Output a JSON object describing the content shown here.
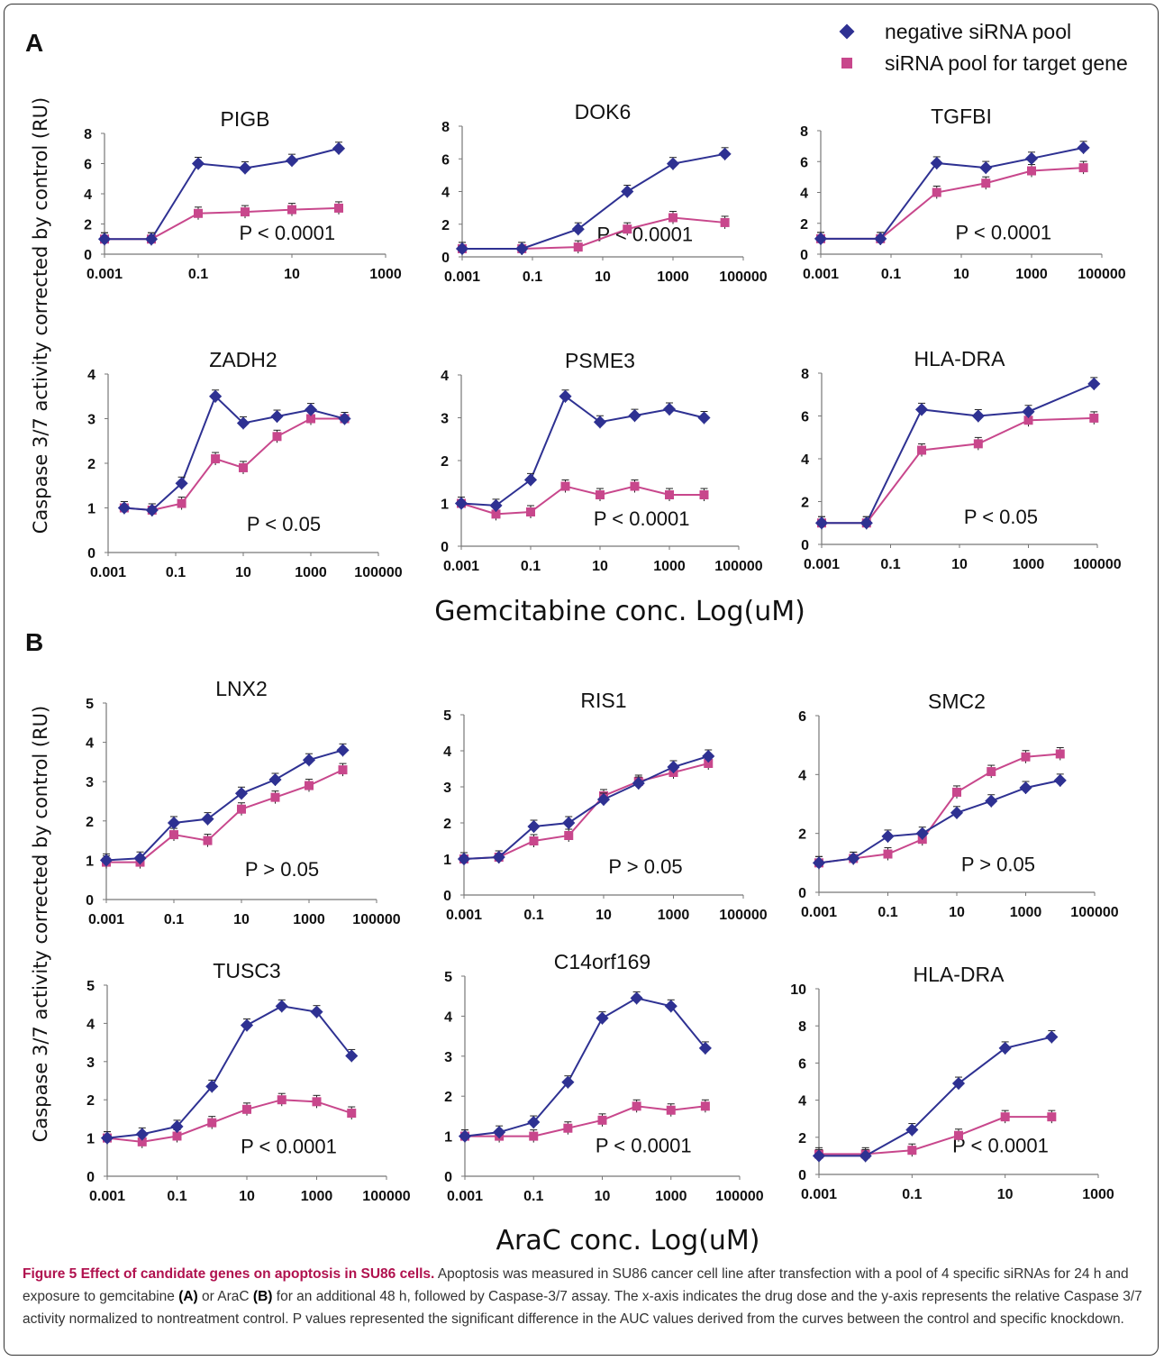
{
  "legend": {
    "items": [
      {
        "label": "negative siRNA pool",
        "color": "#2e3192",
        "marker": "diamond"
      },
      {
        "label": "siRNA pool for target gene",
        "color": "#c8478c",
        "marker": "square"
      }
    ]
  },
  "panels": {
    "A": {
      "letter": "A",
      "xlabel": "Gemcitabine conc. Log(uM)"
    },
    "B": {
      "letter": "B",
      "xlabel": "AraC conc. Log(uM)"
    }
  },
  "ylabel": "Caspase 3/7 activity corrected by control (RU)",
  "caption": {
    "title": "Figure 5 Effect of candidate genes on apoptosis in SU86 cells.",
    "t1": "Apoptosis was measured in SU86 cancer cell line after transfection with a pool of 4 specific siRNAs for 24 h and exposure to gemcitabine",
    "bA": "(A)",
    "t2": "or AraC",
    "bB": "(B)",
    "t3": "for an additional 48 h, followed by Caspase-3/7 assay. The x-axis indicates the drug dose and the y-axis represents the relative Caspase 3/7 activity normalized to nontreatment control. P values represented the significant difference in the AUC values derived from the curves between the control and specific knockdown."
  },
  "colors": {
    "negative": "#2e3192",
    "target": "#c8478c",
    "errorbar": "#222222"
  },
  "chart_data": [
    {
      "type": "line",
      "panel": "A",
      "title": "PIGB",
      "annotation": "P < 0.0001",
      "x_scale": "log",
      "xticks": [
        "0.001",
        "0.1",
        "10",
        "1000"
      ],
      "yticks": [
        "0",
        "2",
        "4",
        "6",
        "8"
      ],
      "ylim": [
        0,
        8
      ],
      "x": [
        0.001,
        0.01,
        0.1,
        1,
        10,
        100
      ],
      "series": [
        {
          "name": "negative siRNA pool",
          "values": [
            1.0,
            1.0,
            6.0,
            5.7,
            6.2,
            7.0
          ]
        },
        {
          "name": "siRNA pool for target gene",
          "values": [
            1.0,
            1.0,
            2.7,
            2.8,
            2.95,
            3.05
          ]
        }
      ]
    },
    {
      "type": "line",
      "panel": "A",
      "title": "DOK6",
      "annotation": "P < 0.0001",
      "x_scale": "log",
      "xticks": [
        "0.001",
        "0.1",
        "10",
        "1000",
        "100000"
      ],
      "yticks": [
        "0",
        "2",
        "4",
        "6",
        "8"
      ],
      "ylim": [
        0,
        8
      ],
      "x": [
        0.001,
        0.05,
        2,
        50,
        1000,
        30000
      ],
      "series": [
        {
          "name": "negative siRNA pool",
          "values": [
            0.5,
            0.5,
            1.7,
            4.0,
            5.7,
            6.3
          ]
        },
        {
          "name": "siRNA pool for target gene",
          "values": [
            0.5,
            0.5,
            0.6,
            1.7,
            2.4,
            2.1
          ]
        }
      ]
    },
    {
      "type": "line",
      "panel": "A",
      "title": "TGFBI",
      "annotation": "P < 0.0001",
      "x_scale": "log",
      "xticks": [
        "0.001",
        "0.1",
        "10",
        "1000",
        "100000"
      ],
      "yticks": [
        "0",
        "2",
        "4",
        "6",
        "8"
      ],
      "ylim": [
        0,
        8
      ],
      "x": [
        0.001,
        0.05,
        2,
        50,
        1000,
        30000
      ],
      "series": [
        {
          "name": "negative siRNA pool",
          "values": [
            1.0,
            1.0,
            5.9,
            5.6,
            6.2,
            6.9
          ]
        },
        {
          "name": "siRNA pool for target gene",
          "values": [
            1.0,
            1.0,
            4.0,
            4.6,
            5.4,
            5.6
          ]
        }
      ]
    },
    {
      "type": "line",
      "panel": "A",
      "title": "ZADH2",
      "annotation": "P < 0.05",
      "x_scale": "log",
      "xticks": [
        "0.001",
        "0.1",
        "10",
        "1000",
        "100000"
      ],
      "yticks": [
        "0",
        "1",
        "2",
        "3",
        "4"
      ],
      "ylim": [
        0,
        4
      ],
      "x": [
        0.003,
        0.02,
        0.15,
        1.5,
        10,
        100,
        1000,
        10000
      ],
      "series": [
        {
          "name": "negative siRNA pool",
          "values": [
            1.0,
            0.95,
            1.55,
            3.5,
            2.9,
            3.05,
            3.2,
            3.0
          ]
        },
        {
          "name": "siRNA pool for target gene",
          "values": [
            1.0,
            0.95,
            1.1,
            2.1,
            1.9,
            2.6,
            3.0,
            3.0
          ]
        }
      ]
    },
    {
      "type": "line",
      "panel": "A",
      "title": "PSME3",
      "annotation": "P < 0.0001",
      "x_scale": "log",
      "xticks": [
        "0.001",
        "0.1",
        "10",
        "1000",
        "100000"
      ],
      "yticks": [
        "0",
        "1",
        "2",
        "3",
        "4"
      ],
      "ylim": [
        0,
        4
      ],
      "x": [
        0.001,
        0.01,
        0.1,
        1,
        10,
        100,
        1000,
        10000
      ],
      "series": [
        {
          "name": "negative siRNA pool",
          "values": [
            1.0,
            0.95,
            1.55,
            3.5,
            2.9,
            3.05,
            3.2,
            3.0
          ]
        },
        {
          "name": "siRNA pool for target gene",
          "values": [
            1.0,
            0.75,
            0.8,
            1.4,
            1.2,
            1.4,
            1.2,
            1.2
          ]
        }
      ]
    },
    {
      "type": "line",
      "panel": "A",
      "title": "HLA-DRA",
      "annotation": "P < 0.05",
      "x_scale": "log",
      "xticks": [
        "0.001",
        "0.1",
        "10",
        "1000",
        "100000"
      ],
      "yticks": [
        "0",
        "2",
        "4",
        "6",
        "8"
      ],
      "ylim": [
        0,
        8
      ],
      "x": [
        0.001,
        0.02,
        0.8,
        35,
        1000,
        80000
      ],
      "series": [
        {
          "name": "negative siRNA pool",
          "values": [
            1.0,
            1.0,
            6.3,
            6.0,
            6.2,
            7.5
          ]
        },
        {
          "name": "siRNA pool for target gene",
          "values": [
            1.0,
            1.0,
            4.4,
            4.7,
            5.8,
            5.9
          ]
        }
      ]
    },
    {
      "type": "line",
      "panel": "B",
      "title": "LNX2",
      "annotation": "P > 0.05",
      "x_scale": "log",
      "xticks": [
        "0.001",
        "0.1",
        "10",
        "1000",
        "100000"
      ],
      "yticks": [
        "0",
        "1",
        "2",
        "3",
        "4",
        "5"
      ],
      "ylim": [
        0,
        5
      ],
      "x": [
        0.001,
        0.01,
        0.1,
        1,
        10,
        100,
        1000,
        10000
      ],
      "series": [
        {
          "name": "negative siRNA pool",
          "values": [
            1.0,
            1.05,
            1.95,
            2.05,
            2.7,
            3.05,
            3.55,
            3.8
          ]
        },
        {
          "name": "siRNA pool for target gene",
          "values": [
            0.95,
            0.95,
            1.65,
            1.5,
            2.3,
            2.6,
            2.9,
            3.3
          ]
        }
      ]
    },
    {
      "type": "line",
      "panel": "B",
      "title": "RIS1",
      "annotation": "P > 0.05",
      "x_scale": "log",
      "xticks": [
        "0.001",
        "0.1",
        "10",
        "1000",
        "100000"
      ],
      "yticks": [
        "0",
        "1",
        "2",
        "3",
        "4",
        "5"
      ],
      "ylim": [
        0,
        5
      ],
      "x": [
        0.001,
        0.01,
        0.1,
        1,
        10,
        100,
        1000,
        10000
      ],
      "series": [
        {
          "name": "negative siRNA pool",
          "values": [
            1.0,
            1.05,
            1.9,
            2.0,
            2.65,
            3.1,
            3.55,
            3.85
          ]
        },
        {
          "name": "siRNA pool for target gene",
          "values": [
            1.0,
            1.05,
            1.5,
            1.65,
            2.75,
            3.15,
            3.4,
            3.65
          ]
        }
      ]
    },
    {
      "type": "line",
      "panel": "B",
      "title": "SMC2",
      "annotation": "P > 0.05",
      "x_scale": "log",
      "xticks": [
        "0.001",
        "0.1",
        "10",
        "1000",
        "100000"
      ],
      "yticks": [
        "0",
        "2",
        "4",
        "6"
      ],
      "ylim": [
        0,
        6
      ],
      "x": [
        0.001,
        0.01,
        0.1,
        1,
        10,
        100,
        1000,
        10000
      ],
      "series": [
        {
          "name": "negative siRNA pool",
          "values": [
            1.0,
            1.15,
            1.9,
            2.0,
            2.7,
            3.1,
            3.55,
            3.8
          ]
        },
        {
          "name": "siRNA pool for target gene",
          "values": [
            1.0,
            1.15,
            1.3,
            1.8,
            3.4,
            4.1,
            4.6,
            4.7
          ]
        }
      ]
    },
    {
      "type": "line",
      "panel": "B",
      "title": "TUSC3",
      "annotation": "P < 0.0001",
      "x_scale": "log",
      "xticks": [
        "0.001",
        "0.1",
        "10",
        "1000",
        "100000"
      ],
      "yticks": [
        "0",
        "1",
        "2",
        "3",
        "4",
        "5"
      ],
      "ylim": [
        0,
        5
      ],
      "x": [
        0.001,
        0.01,
        0.1,
        1,
        10,
        100,
        1000,
        10000
      ],
      "series": [
        {
          "name": "negative siRNA pool",
          "values": [
            1.0,
            1.1,
            1.3,
            2.35,
            3.95,
            4.45,
            4.3,
            3.15
          ]
        },
        {
          "name": "siRNA pool for target gene",
          "values": [
            1.0,
            0.9,
            1.05,
            1.4,
            1.75,
            2.0,
            1.95,
            1.65
          ]
        }
      ]
    },
    {
      "type": "line",
      "panel": "B",
      "title": "C14orf169",
      "annotation": "P < 0.0001",
      "x_scale": "log",
      "xticks": [
        "0.001",
        "0.1",
        "10",
        "1000",
        "100000"
      ],
      "yticks": [
        "0",
        "1",
        "2",
        "3",
        "4",
        "5"
      ],
      "ylim": [
        0,
        5
      ],
      "x": [
        0.001,
        0.01,
        0.1,
        1,
        10,
        100,
        1000,
        10000
      ],
      "series": [
        {
          "name": "negative siRNA pool",
          "values": [
            1.0,
            1.1,
            1.35,
            2.35,
            3.95,
            4.45,
            4.25,
            3.2
          ]
        },
        {
          "name": "siRNA pool for target gene",
          "values": [
            1.0,
            1.0,
            1.0,
            1.2,
            1.4,
            1.75,
            1.65,
            1.75
          ]
        }
      ]
    },
    {
      "type": "line",
      "panel": "B",
      "title": "HLA-DRA",
      "annotation": "P < 0.0001",
      "x_scale": "log",
      "xticks": [
        "0.001",
        "0.1",
        "10",
        "1000"
      ],
      "yticks": [
        "0",
        "2",
        "4",
        "6",
        "8",
        "10"
      ],
      "ylim": [
        0,
        10
      ],
      "x": [
        0.001,
        0.01,
        0.1,
        1,
        10,
        100
      ],
      "series": [
        {
          "name": "negative siRNA pool",
          "values": [
            1.0,
            1.0,
            2.4,
            4.9,
            6.8,
            7.4
          ]
        },
        {
          "name": "siRNA pool for target gene",
          "values": [
            1.1,
            1.1,
            1.3,
            2.1,
            3.1,
            3.1
          ]
        }
      ]
    }
  ]
}
